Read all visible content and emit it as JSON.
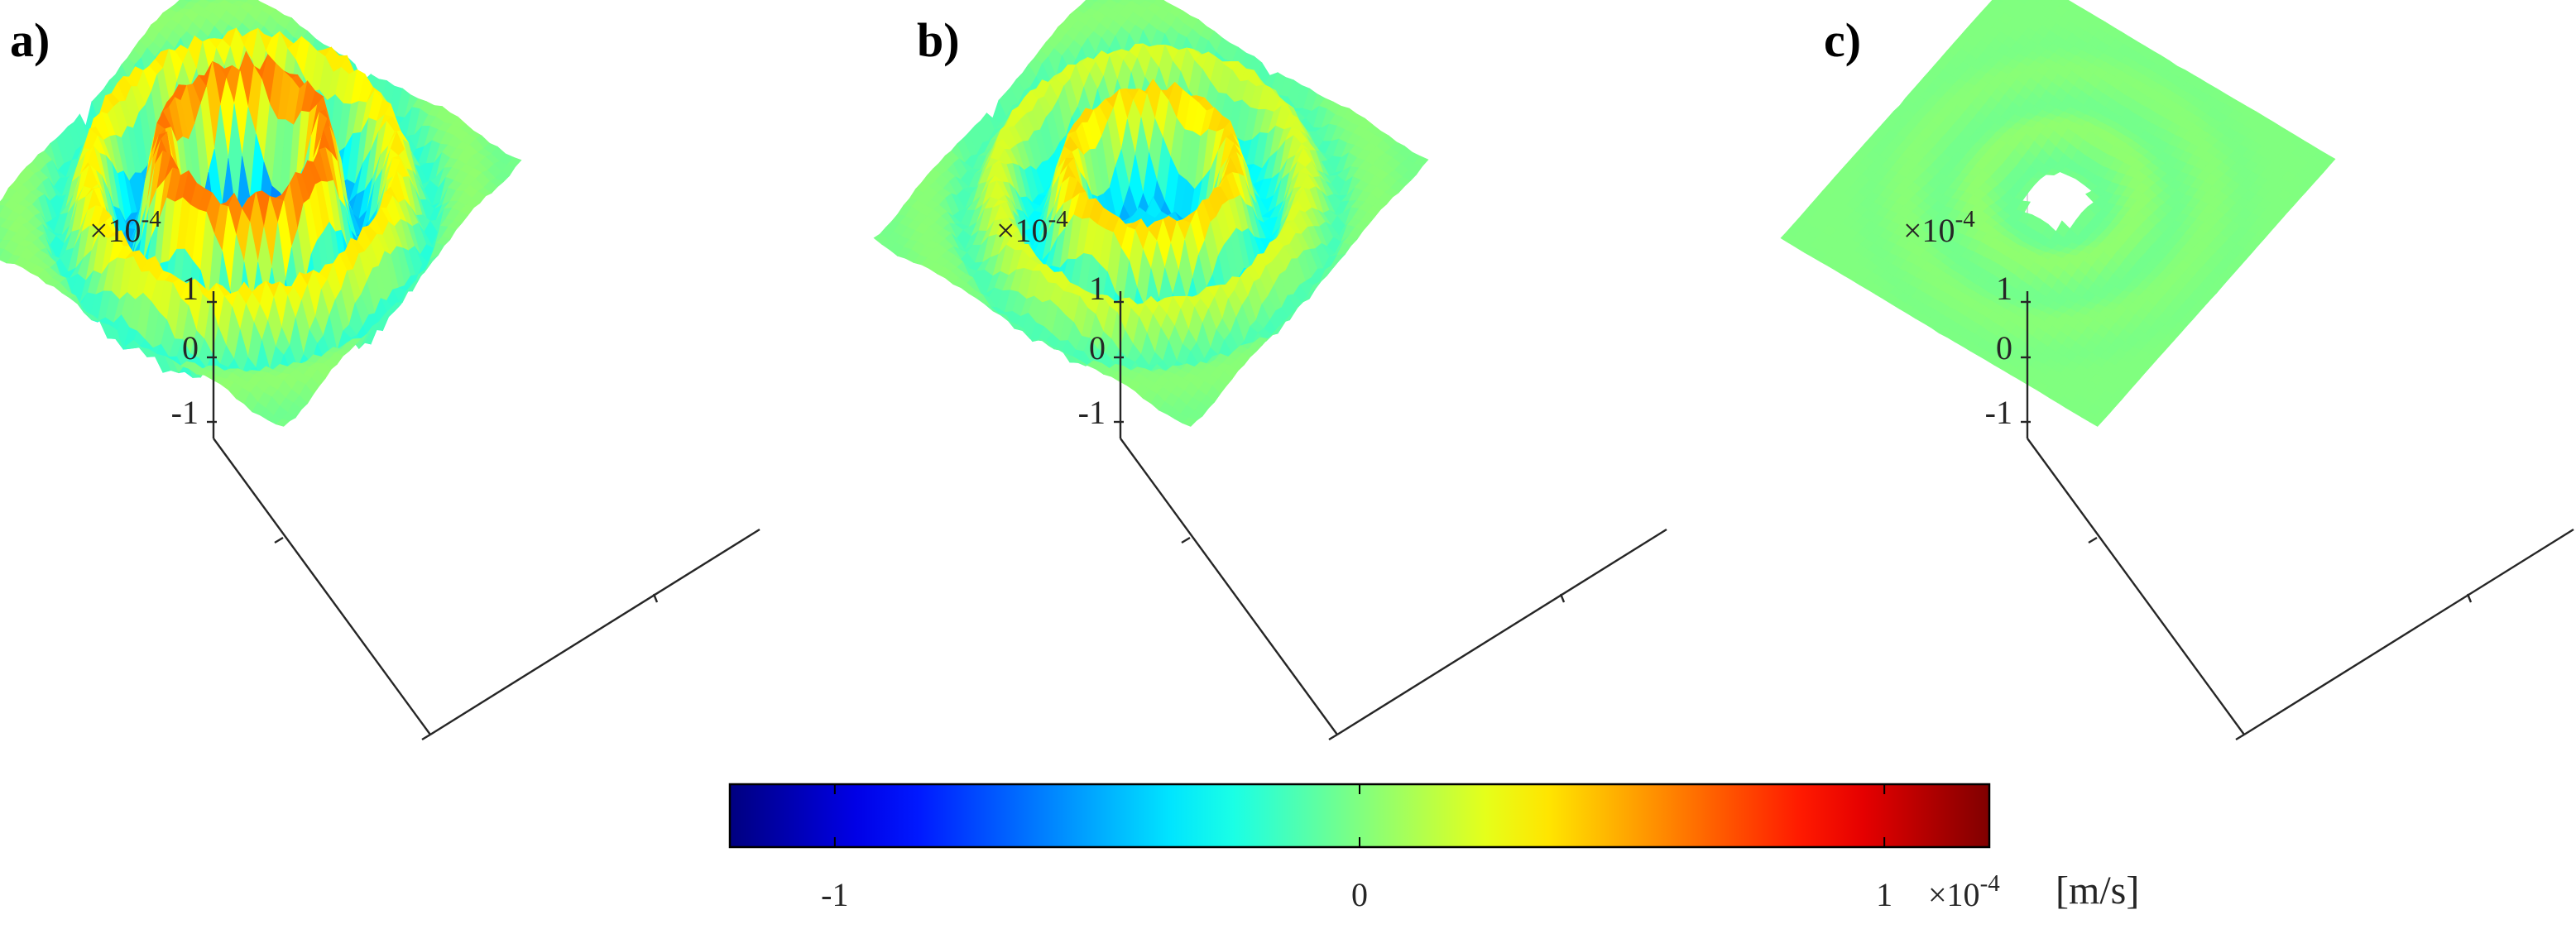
{
  "panels": [
    {
      "id": "a",
      "label": "a)",
      "z_scale": "×10",
      "z_exponent": "-4",
      "z_ticks": [
        "1",
        "0",
        "-1"
      ],
      "peak": 1.0,
      "centre": "hollow",
      "contrast": 1.0
    },
    {
      "id": "b",
      "label": "b)",
      "z_scale": "×10",
      "z_exponent": "-4",
      "z_ticks": [
        "1",
        "0",
        "-1"
      ],
      "peak": 0.85,
      "centre": "hollow",
      "contrast": 0.75
    },
    {
      "id": "c",
      "label": "c)",
      "z_scale": "×10",
      "z_exponent": "-4",
      "z_ticks": [
        "1",
        "0",
        "-1"
      ],
      "peak": 0.25,
      "centre": "hole",
      "contrast": 0.25
    }
  ],
  "colorbar": {
    "colormap": "jet",
    "tick_labels": [
      "-1",
      "0",
      "1"
    ],
    "tick_values": [
      -1,
      0,
      1
    ],
    "range": [
      -1.2,
      1.2
    ],
    "scale": "×10",
    "exponent": "-4",
    "unit": "[m/s]"
  },
  "colors": {
    "box_edge": "#d9d9d9",
    "axis": "#262626",
    "outline": "#000000"
  },
  "chart_data": {
    "type": "surface",
    "title": "",
    "panels": [
      "a)",
      "b)",
      "c)"
    ],
    "z_ticks": [
      -1,
      0,
      1
    ],
    "z_multiplier": "×10^-4",
    "colorbar_ticks": [
      -1,
      0,
      1
    ],
    "colorbar_range": [
      -1.2,
      1.2
    ],
    "unit": "[m/s]",
    "grid": false
  }
}
